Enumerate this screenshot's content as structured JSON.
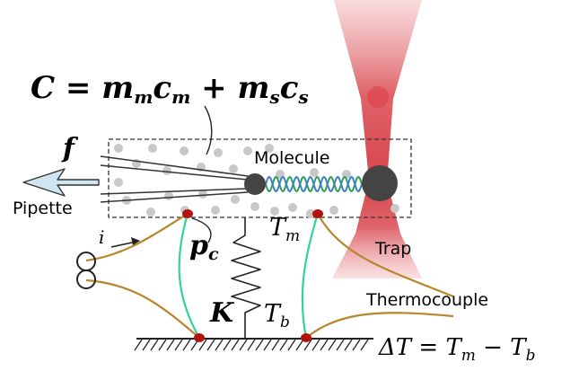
{
  "equation_capacity": {
    "lhs": "C",
    "eq": " = ",
    "m1": "m",
    "m1_sub": "m",
    "c1": "c",
    "c1_sub": "m",
    "plus": " + ",
    "m2": "m",
    "m2_sub": "s",
    "c2": "c",
    "c2_sub": "s"
  },
  "labels": {
    "force": "f",
    "pipette": "Pipette",
    "molecule": "Molecule",
    "trap": "Trap",
    "thermocouple": "Thermocouple",
    "current": "i",
    "tm": "T",
    "tm_sub": "m",
    "pc": "p",
    "pc_sub": "c",
    "k": "K",
    "tb": "T",
    "tb_sub": "b"
  },
  "equation_delta": {
    "delta": "ΔT",
    "eq": " = ",
    "t1": "T",
    "t1_sub": "m",
    "minus": " − ",
    "t2": "T",
    "t2_sub": "b"
  },
  "colors": {
    "beam": "#d9484f",
    "junction": "#b3120f",
    "lead_wire": "#b8862a",
    "green_wire": "#2fd49a",
    "bead": "#444444",
    "helix_a": "#2e9e5c",
    "helix_b": "#3d7fc9",
    "arrow_fill": "#cfe6f2"
  }
}
